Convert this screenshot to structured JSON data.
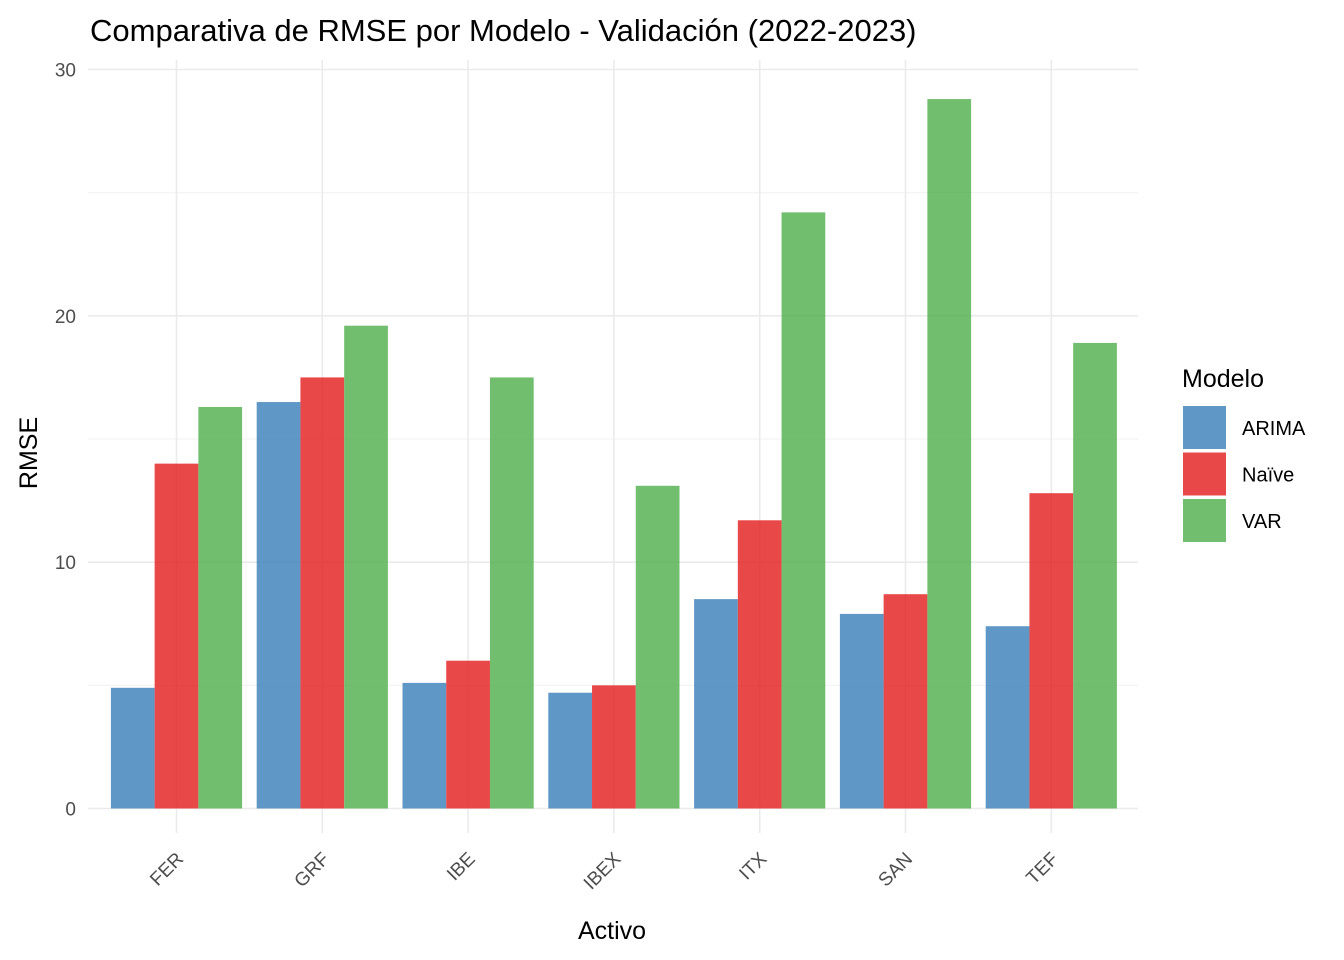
{
  "chart_data": {
    "type": "bar",
    "title": "Comparativa de RMSE por Modelo - Validación (2022-2023)",
    "xlabel": "Activo",
    "ylabel": "RMSE",
    "categories": [
      "FER",
      "GRF",
      "IBE",
      "IBEX",
      "ITX",
      "SAN",
      "TEF"
    ],
    "series": [
      {
        "name": "ARIMA",
        "color": "#377eb8",
        "values": [
          4.9,
          16.5,
          5.1,
          4.7,
          8.5,
          7.9,
          7.4
        ]
      },
      {
        "name": "Naïve",
        "color": "#e41a1c",
        "values": [
          14.0,
          17.5,
          6.0,
          5.0,
          11.7,
          8.7,
          12.8
        ]
      },
      {
        "name": "VAR",
        "color": "#4daf4a",
        "values": [
          16.3,
          19.6,
          17.5,
          13.1,
          24.2,
          28.8,
          18.9
        ]
      }
    ],
    "ylim": [
      0,
      30
    ],
    "yticks": [
      "0",
      "10",
      "20",
      "30"
    ],
    "grid": true,
    "legend": {
      "title": "Modelo",
      "position": "right"
    }
  }
}
